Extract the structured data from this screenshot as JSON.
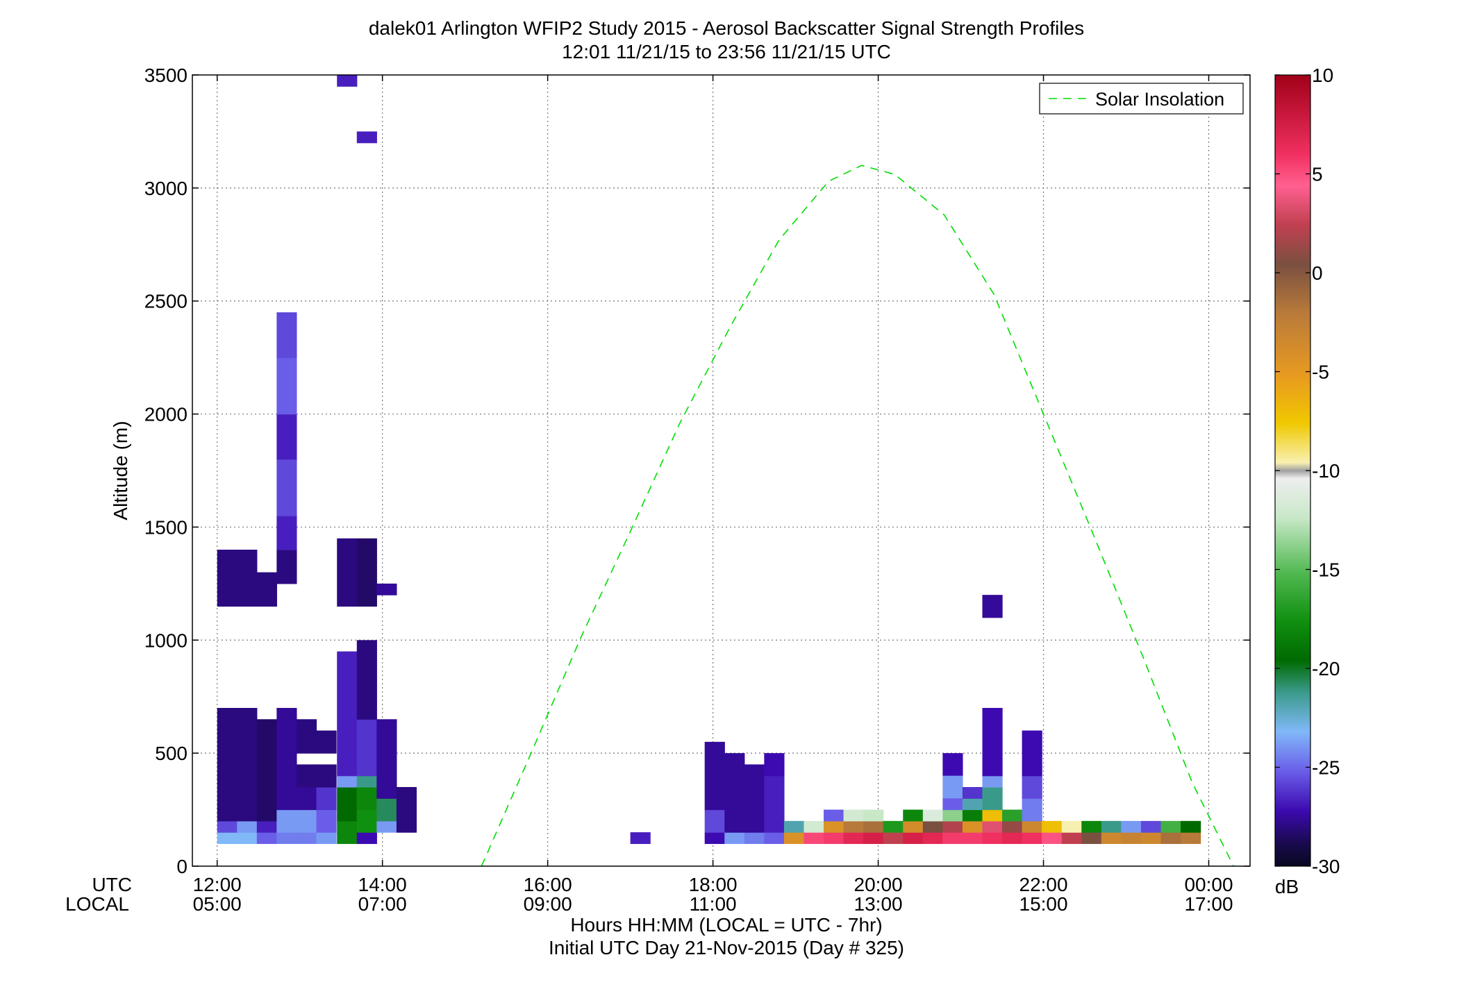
{
  "chart_data": {
    "type": "heatmap",
    "title": "dalek01 Arlington WFIP2 Study 2015 - Aerosol Backscatter Signal Strength Profiles",
    "subtitle": "12:01 11/21/15 to 23:56 11/21/15  UTC",
    "ylabel": "Altitude (m)",
    "xlabel": "Hours HH:MM  (LOCAL = UTC - 7hr)",
    "xlabel2": "Initial UTC Day 21-Nov-2015 (Day # 325)",
    "row_label_utc": "UTC",
    "row_label_local": "LOCAL",
    "xlim": [
      11.7,
      24.5
    ],
    "ylim": [
      0,
      3500
    ],
    "grid": true,
    "x_ticks": [
      {
        "value": 12,
        "utc": "12:00",
        "local": "05:00"
      },
      {
        "value": 14,
        "utc": "14:00",
        "local": "07:00"
      },
      {
        "value": 16,
        "utc": "16:00",
        "local": "09:00"
      },
      {
        "value": 18,
        "utc": "18:00",
        "local": "11:00"
      },
      {
        "value": 20,
        "utc": "20:00",
        "local": "13:00"
      },
      {
        "value": 22,
        "utc": "22:00",
        "local": "15:00"
      },
      {
        "value": 24,
        "utc": "00:00",
        "local": "17:00"
      }
    ],
    "y_ticks": [
      0,
      500,
      1000,
      1500,
      2000,
      2500,
      3000,
      3500
    ],
    "colorbar": {
      "label": "dB",
      "range": [
        -30,
        10
      ],
      "ticks": [
        10,
        5,
        0,
        -5,
        -10,
        -15,
        -20,
        -25,
        -30
      ]
    },
    "legend": {
      "position": "top-right",
      "entries": [
        {
          "name": "Solar Insolation",
          "color": "#00dd00",
          "style": "dashed"
        }
      ]
    },
    "solar_insolation": {
      "x": [
        15.2,
        15.8,
        16.4,
        17.0,
        17.6,
        18.2,
        18.8,
        19.4,
        19.8,
        20.2,
        20.8,
        21.4,
        22.0,
        22.6,
        23.2,
        23.8,
        24.3
      ],
      "y": [
        0,
        500,
        1010,
        1480,
        1960,
        2380,
        2770,
        3030,
        3100,
        3060,
        2880,
        2530,
        2000,
        1470,
        930,
        370,
        0
      ]
    },
    "cells": [
      [
        12.0,
        100,
        0.48,
        50,
        -22.5
      ],
      [
        12.0,
        150,
        0.24,
        50,
        -24.5
      ],
      [
        12.0,
        200,
        0.24,
        500,
        -27.0
      ],
      [
        12.24,
        150,
        0.24,
        50,
        -23.0
      ],
      [
        12.24,
        200,
        0.24,
        500,
        -27.0
      ],
      [
        12.0,
        1150,
        0.48,
        250,
        -27.0
      ],
      [
        12.48,
        100,
        0.24,
        50,
        -24.0
      ],
      [
        12.48,
        150,
        0.24,
        50,
        -25.5
      ],
      [
        12.48,
        200,
        0.24,
        450,
        -27.5
      ],
      [
        12.48,
        1150,
        0.24,
        150,
        -27.0
      ],
      [
        12.72,
        100,
        0.24,
        50,
        -23.5
      ],
      [
        12.72,
        150,
        0.24,
        100,
        -23.0
      ],
      [
        12.72,
        250,
        0.24,
        450,
        -26.5
      ],
      [
        12.72,
        1250,
        0.24,
        150,
        -27.0
      ],
      [
        12.72,
        1400,
        0.24,
        150,
        -25.5
      ],
      [
        12.72,
        1550,
        0.24,
        250,
        -24.5
      ],
      [
        12.72,
        1800,
        0.24,
        200,
        -25.5
      ],
      [
        12.72,
        2000,
        0.24,
        250,
        -24.0
      ],
      [
        12.72,
        2250,
        0.24,
        200,
        -24.5
      ],
      [
        12.96,
        100,
        0.24,
        50,
        -23.5
      ],
      [
        12.96,
        150,
        0.24,
        100,
        -23.0
      ],
      [
        12.96,
        250,
        0.24,
        100,
        -26.5
      ],
      [
        12.96,
        350,
        0.24,
        100,
        -27.0
      ],
      [
        12.96,
        500,
        0.24,
        150,
        -27.0
      ],
      [
        13.2,
        100,
        0.24,
        50,
        -23.0
      ],
      [
        13.2,
        150,
        0.24,
        100,
        -24.0
      ],
      [
        13.2,
        250,
        0.24,
        100,
        -25.0
      ],
      [
        13.2,
        350,
        0.24,
        100,
        -27.0
      ],
      [
        13.2,
        500,
        0.24,
        100,
        -27.0
      ],
      [
        13.45,
        100,
        0.24,
        100,
        -18.0
      ],
      [
        13.45,
        200,
        0.24,
        150,
        -19.5
      ],
      [
        13.45,
        350,
        0.24,
        50,
        -23.0
      ],
      [
        13.45,
        400,
        0.24,
        550,
        -25.5
      ],
      [
        13.45,
        1150,
        0.24,
        300,
        -27.0
      ],
      [
        13.69,
        100,
        0.24,
        50,
        -26.0
      ],
      [
        13.69,
        150,
        0.24,
        100,
        -17.5
      ],
      [
        13.69,
        250,
        0.24,
        100,
        -18.0
      ],
      [
        13.69,
        350,
        0.24,
        50,
        -21.0
      ],
      [
        13.69,
        400,
        0.24,
        250,
        -25.0
      ],
      [
        13.69,
        650,
        0.24,
        350,
        -27.0
      ],
      [
        13.69,
        1150,
        0.24,
        300,
        -27.5
      ],
      [
        13.69,
        3200,
        0.24,
        50,
        -25.5
      ],
      [
        13.45,
        3450,
        0.24,
        50,
        -25.5
      ],
      [
        13.93,
        150,
        0.24,
        50,
        -23.0
      ],
      [
        13.93,
        200,
        0.24,
        100,
        -20.5
      ],
      [
        13.93,
        300,
        0.24,
        350,
        -26.5
      ],
      [
        13.93,
        1200,
        0.24,
        50,
        -26.5
      ],
      [
        14.17,
        150,
        0.24,
        200,
        -27.0
      ],
      [
        17.0,
        100,
        0.24,
        50,
        -25.5
      ],
      [
        17.9,
        100,
        0.24,
        50,
        -26.0
      ],
      [
        17.9,
        150,
        0.24,
        100,
        -24.5
      ],
      [
        17.9,
        250,
        0.24,
        300,
        -26.5
      ],
      [
        18.14,
        100,
        0.24,
        50,
        -23.0
      ],
      [
        18.14,
        150,
        0.24,
        350,
        -26.5
      ],
      [
        18.38,
        100,
        0.24,
        50,
        -23.5
      ],
      [
        18.38,
        150,
        0.24,
        300,
        -26.5
      ],
      [
        18.62,
        100,
        0.24,
        50,
        -24.0
      ],
      [
        18.62,
        150,
        0.24,
        250,
        -25.5
      ],
      [
        18.62,
        400,
        0.24,
        100,
        -26.0
      ],
      [
        18.86,
        100,
        0.24,
        50,
        -4.0
      ],
      [
        18.86,
        150,
        0.24,
        50,
        -21.5
      ],
      [
        19.1,
        100,
        0.24,
        50,
        6.0
      ],
      [
        19.1,
        150,
        0.24,
        50,
        -11.5
      ],
      [
        19.34,
        100,
        0.24,
        50,
        6.5
      ],
      [
        19.34,
        150,
        0.24,
        50,
        -4.0
      ],
      [
        19.34,
        200,
        0.24,
        50,
        -24.0
      ],
      [
        19.58,
        100,
        0.24,
        50,
        7.5
      ],
      [
        19.58,
        150,
        0.24,
        50,
        -1.5
      ],
      [
        19.58,
        200,
        0.24,
        50,
        -11.5
      ],
      [
        19.82,
        100,
        0.24,
        50,
        8.0
      ],
      [
        19.82,
        150,
        0.24,
        50,
        -1.0
      ],
      [
        19.82,
        200,
        0.24,
        50,
        -12.0
      ],
      [
        20.06,
        100,
        0.24,
        50,
        3.0
      ],
      [
        20.06,
        150,
        0.24,
        50,
        -17.0
      ],
      [
        20.3,
        100,
        0.24,
        50,
        8.0
      ],
      [
        20.3,
        150,
        0.24,
        50,
        -3.5
      ],
      [
        20.3,
        200,
        0.24,
        50,
        -18.0
      ],
      [
        20.54,
        100,
        0.24,
        50,
        7.5
      ],
      [
        20.54,
        150,
        0.24,
        50,
        0.5
      ],
      [
        20.54,
        200,
        0.24,
        50,
        -11.0
      ],
      [
        20.78,
        100,
        0.24,
        50,
        6.5
      ],
      [
        20.78,
        150,
        0.24,
        50,
        2.5
      ],
      [
        20.78,
        200,
        0.24,
        50,
        -13.5
      ],
      [
        20.78,
        400,
        0.24,
        100,
        -26.0
      ],
      [
        20.78,
        300,
        0.24,
        100,
        -23.0
      ],
      [
        20.78,
        250,
        0.24,
        50,
        -24.0
      ],
      [
        21.02,
        100,
        0.24,
        50,
        6.5
      ],
      [
        21.02,
        150,
        0.24,
        50,
        -4.0
      ],
      [
        21.02,
        200,
        0.24,
        50,
        -18.5
      ],
      [
        21.02,
        250,
        0.24,
        50,
        -21.5
      ],
      [
        21.02,
        300,
        0.24,
        50,
        -25.0
      ],
      [
        21.26,
        100,
        0.24,
        50,
        7.0
      ],
      [
        21.26,
        150,
        0.24,
        50,
        4.0
      ],
      [
        21.26,
        200,
        0.24,
        50,
        -7.0
      ],
      [
        21.26,
        250,
        0.24,
        100,
        -21.0
      ],
      [
        21.26,
        350,
        0.24,
        50,
        -23.0
      ],
      [
        21.26,
        400,
        0.24,
        300,
        -26.0
      ],
      [
        21.26,
        1100,
        0.24,
        100,
        -26.5
      ],
      [
        21.5,
        100,
        0.24,
        50,
        7.5
      ],
      [
        21.5,
        150,
        0.24,
        50,
        1.5
      ],
      [
        21.5,
        200,
        0.24,
        50,
        -16.5
      ],
      [
        21.74,
        100,
        0.24,
        50,
        7.0
      ],
      [
        21.74,
        150,
        0.24,
        50,
        -3.0
      ],
      [
        21.74,
        200,
        0.24,
        100,
        -23.5
      ],
      [
        21.74,
        300,
        0.24,
        100,
        -24.5
      ],
      [
        21.74,
        400,
        0.24,
        200,
        -26.0
      ],
      [
        21.98,
        100,
        0.24,
        50,
        5.5
      ],
      [
        21.98,
        150,
        0.24,
        50,
        -7.0
      ],
      [
        22.22,
        100,
        0.24,
        50,
        3.0
      ],
      [
        22.22,
        150,
        0.24,
        50,
        -9.5
      ],
      [
        22.46,
        100,
        0.24,
        50,
        0.5
      ],
      [
        22.46,
        150,
        0.24,
        50,
        -18.0
      ],
      [
        22.7,
        100,
        0.24,
        50,
        -3.0
      ],
      [
        22.7,
        150,
        0.24,
        50,
        -21.0
      ],
      [
        22.94,
        100,
        0.24,
        50,
        -2.5
      ],
      [
        22.94,
        150,
        0.24,
        50,
        -23.0
      ],
      [
        23.18,
        100,
        0.24,
        50,
        -3.0
      ],
      [
        23.18,
        150,
        0.24,
        50,
        -24.5
      ],
      [
        23.42,
        100,
        0.24,
        50,
        -1.0
      ],
      [
        23.42,
        150,
        0.24,
        50,
        -15.5
      ],
      [
        23.66,
        100,
        0.24,
        50,
        -1.5
      ],
      [
        23.66,
        150,
        0.24,
        50,
        -19.5
      ]
    ]
  }
}
